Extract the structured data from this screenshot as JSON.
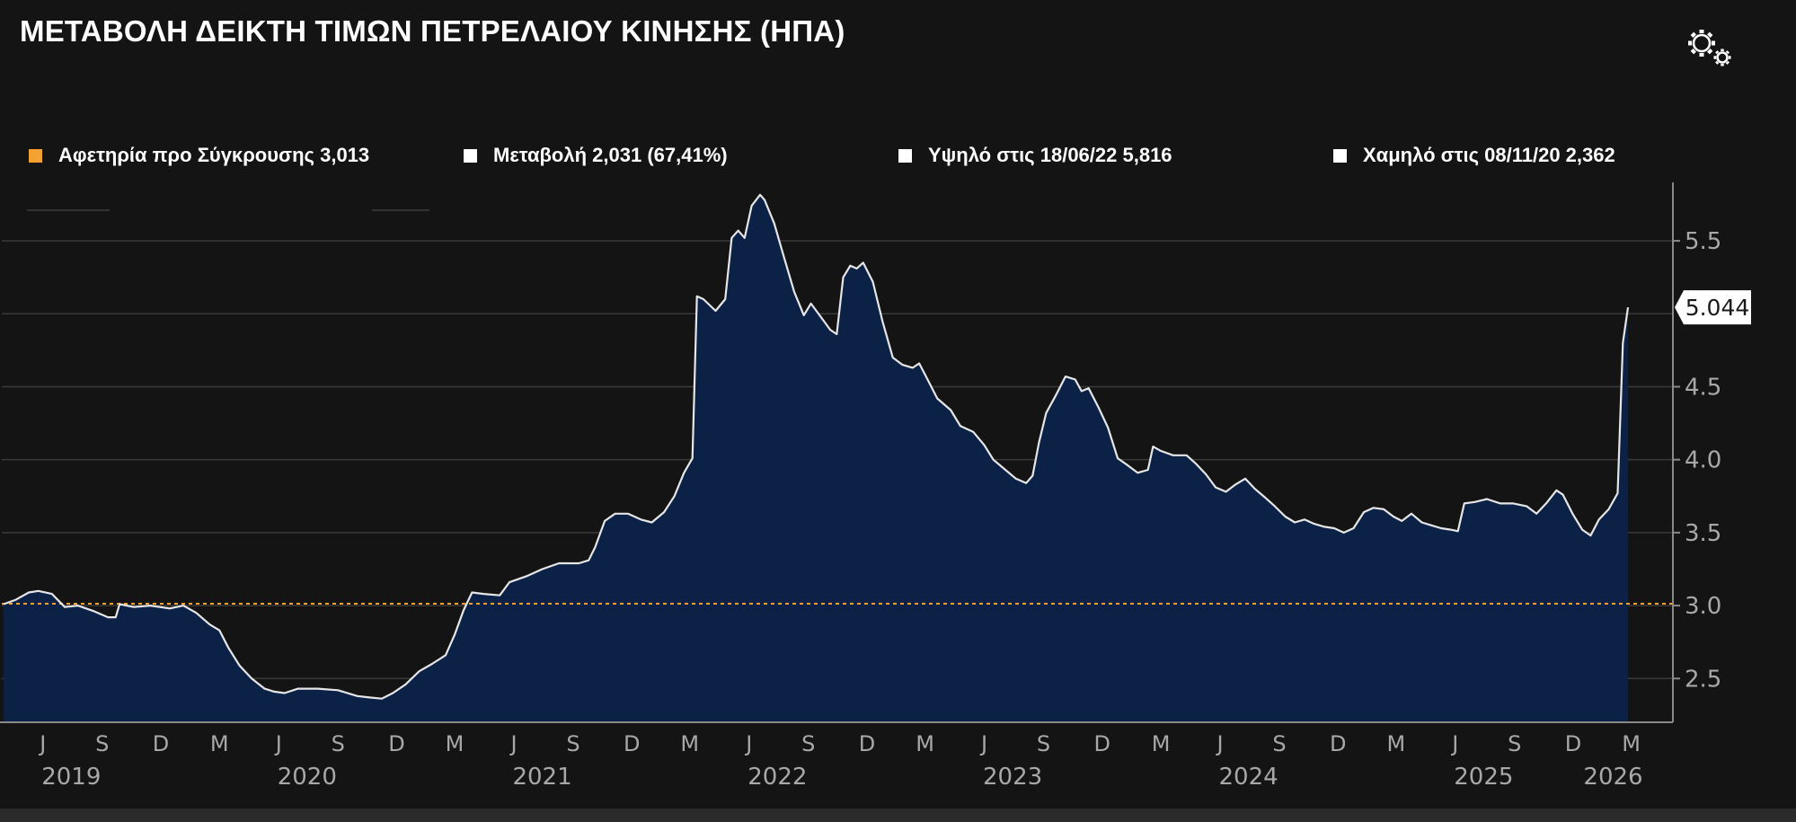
{
  "title": "ΜΕΤΑΒΟΛΗ ΔΕΙΚΤΗ ΤΙΜΩΝ ΠΕΤΡΕΛΑΙΟΥ ΚΙΝΗΣΗΣ (ΗΠΑ)",
  "settings_icon": "gears-icon",
  "legend": [
    {
      "label": "Αφετηρία προ Σύγκρουσης 3,013",
      "color": "#f5a12f"
    },
    {
      "label": "Μεταβολή 2,031 (67,41%)",
      "color": "#ffffff"
    },
    {
      "label": "Υψηλό στις 18/06/22  5,816",
      "color": "#ffffff"
    },
    {
      "label": "Χαμηλό  στις  08/11/20  2,362",
      "color": "#ffffff"
    }
  ],
  "last_value_label": "5.044",
  "colors": {
    "background": "#141414",
    "area_fill": "#0b2146",
    "line": "#e6e6e6",
    "baseline": "#f5a12f",
    "grid": "#3a3a3a",
    "axis_text": "#a8a8a8"
  },
  "chart_data": {
    "type": "area",
    "ylim": [
      2.2,
      5.95
    ],
    "yticks": [
      2.5,
      3.0,
      3.5,
      4.0,
      4.5,
      5.5
    ],
    "ytick_labels": [
      "2.5",
      "3.0",
      "3.5",
      "4.0",
      "4.5",
      "5.5"
    ],
    "baseline": 3.013,
    "grid": true,
    "x_month_labels": [
      {
        "label": "J",
        "date": "2019-06-01"
      },
      {
        "label": "S",
        "date": "2019-09-01"
      },
      {
        "label": "D",
        "date": "2019-12-01"
      },
      {
        "label": "M",
        "date": "2020-03-01"
      },
      {
        "label": "J",
        "date": "2020-06-01"
      },
      {
        "label": "S",
        "date": "2020-09-01"
      },
      {
        "label": "D",
        "date": "2020-12-01"
      },
      {
        "label": "M",
        "date": "2021-03-01"
      },
      {
        "label": "J",
        "date": "2021-06-01"
      },
      {
        "label": "S",
        "date": "2021-09-01"
      },
      {
        "label": "D",
        "date": "2021-12-01"
      },
      {
        "label": "M",
        "date": "2022-03-01"
      },
      {
        "label": "J",
        "date": "2022-06-01"
      },
      {
        "label": "S",
        "date": "2022-09-01"
      },
      {
        "label": "D",
        "date": "2022-12-01"
      },
      {
        "label": "M",
        "date": "2023-03-01"
      },
      {
        "label": "J",
        "date": "2023-06-01"
      },
      {
        "label": "S",
        "date": "2023-09-01"
      },
      {
        "label": "D",
        "date": "2023-12-01"
      },
      {
        "label": "M",
        "date": "2024-03-01"
      },
      {
        "label": "J",
        "date": "2024-06-01"
      },
      {
        "label": "S",
        "date": "2024-09-01"
      },
      {
        "label": "D",
        "date": "2024-12-01"
      },
      {
        "label": "M",
        "date": "2025-03-01"
      },
      {
        "label": "J",
        "date": "2025-06-01"
      },
      {
        "label": "S",
        "date": "2025-09-01"
      },
      {
        "label": "D",
        "date": "2025-12-01"
      },
      {
        "label": "M",
        "date": "2026-03-01"
      }
    ],
    "x_year_labels": [
      {
        "label": "2019",
        "date": "2019-07-15"
      },
      {
        "label": "2020",
        "date": "2020-07-15"
      },
      {
        "label": "2021",
        "date": "2021-07-15"
      },
      {
        "label": "2022",
        "date": "2022-07-15"
      },
      {
        "label": "2023",
        "date": "2023-07-15"
      },
      {
        "label": "2024",
        "date": "2024-07-15"
      },
      {
        "label": "2025",
        "date": "2025-07-15"
      },
      {
        "label": "2026",
        "date": "2026-02-01"
      }
    ],
    "series": [
      {
        "points": [
          [
            "2019-04-01",
            3.01
          ],
          [
            "2019-04-20",
            3.04
          ],
          [
            "2019-05-10",
            3.09
          ],
          [
            "2019-05-25",
            3.1
          ],
          [
            "2019-06-15",
            3.08
          ],
          [
            "2019-07-05",
            2.99
          ],
          [
            "2019-07-25",
            3.0
          ],
          [
            "2019-08-20",
            2.96
          ],
          [
            "2019-09-10",
            2.92
          ],
          [
            "2019-09-22",
            2.92
          ],
          [
            "2019-09-28",
            3.01
          ],
          [
            "2019-10-20",
            2.99
          ],
          [
            "2019-11-15",
            3.0
          ],
          [
            "2019-12-15",
            2.98
          ],
          [
            "2020-01-05",
            3.0
          ],
          [
            "2020-01-25",
            2.95
          ],
          [
            "2020-02-15",
            2.87
          ],
          [
            "2020-03-01",
            2.83
          ],
          [
            "2020-03-15",
            2.71
          ],
          [
            "2020-04-01",
            2.59
          ],
          [
            "2020-04-20",
            2.5
          ],
          [
            "2020-05-10",
            2.43
          ],
          [
            "2020-05-25",
            2.41
          ],
          [
            "2020-06-10",
            2.4
          ],
          [
            "2020-07-01",
            2.43
          ],
          [
            "2020-08-01",
            2.43
          ],
          [
            "2020-09-01",
            2.42
          ],
          [
            "2020-10-01",
            2.38
          ],
          [
            "2020-10-20",
            2.37
          ],
          [
            "2020-11-08",
            2.362
          ],
          [
            "2020-11-25",
            2.4
          ],
          [
            "2020-12-15",
            2.46
          ],
          [
            "2021-01-05",
            2.55
          ],
          [
            "2021-01-25",
            2.6
          ],
          [
            "2021-02-15",
            2.66
          ],
          [
            "2021-03-01",
            2.8
          ],
          [
            "2021-03-15",
            2.97
          ],
          [
            "2021-03-28",
            3.09
          ],
          [
            "2021-04-15",
            3.08
          ],
          [
            "2021-05-10",
            3.07
          ],
          [
            "2021-05-25",
            3.16
          ],
          [
            "2021-06-20",
            3.2
          ],
          [
            "2021-07-15",
            3.25
          ],
          [
            "2021-08-10",
            3.29
          ],
          [
            "2021-09-10",
            3.29
          ],
          [
            "2021-09-25",
            3.31
          ],
          [
            "2021-10-05",
            3.4
          ],
          [
            "2021-10-20",
            3.58
          ],
          [
            "2021-11-05",
            3.63
          ],
          [
            "2021-11-25",
            3.63
          ],
          [
            "2021-12-15",
            3.59
          ],
          [
            "2022-01-01",
            3.57
          ],
          [
            "2022-01-20",
            3.64
          ],
          [
            "2022-02-05",
            3.75
          ],
          [
            "2022-02-20",
            3.91
          ],
          [
            "2022-03-05",
            4.01
          ],
          [
            "2022-03-12",
            5.12
          ],
          [
            "2022-03-22",
            5.1
          ],
          [
            "2022-04-10",
            5.02
          ],
          [
            "2022-04-25",
            5.1
          ],
          [
            "2022-05-05",
            5.52
          ],
          [
            "2022-05-15",
            5.57
          ],
          [
            "2022-05-25",
            5.52
          ],
          [
            "2022-06-05",
            5.74
          ],
          [
            "2022-06-18",
            5.816
          ],
          [
            "2022-06-25",
            5.78
          ],
          [
            "2022-07-10",
            5.62
          ],
          [
            "2022-07-25",
            5.39
          ],
          [
            "2022-08-10",
            5.15
          ],
          [
            "2022-08-25",
            4.99
          ],
          [
            "2022-09-05",
            5.07
          ],
          [
            "2022-09-20",
            4.98
          ],
          [
            "2022-10-05",
            4.89
          ],
          [
            "2022-10-15",
            4.86
          ],
          [
            "2022-10-25",
            5.25
          ],
          [
            "2022-11-05",
            5.33
          ],
          [
            "2022-11-15",
            5.31
          ],
          [
            "2022-11-25",
            5.35
          ],
          [
            "2022-12-10",
            5.22
          ],
          [
            "2022-12-25",
            4.95
          ],
          [
            "2023-01-10",
            4.7
          ],
          [
            "2023-01-25",
            4.65
          ],
          [
            "2023-02-10",
            4.63
          ],
          [
            "2023-02-20",
            4.66
          ],
          [
            "2023-03-05",
            4.55
          ],
          [
            "2023-03-20",
            4.42
          ],
          [
            "2023-04-10",
            4.34
          ],
          [
            "2023-04-25",
            4.23
          ],
          [
            "2023-05-15",
            4.19
          ],
          [
            "2023-06-01",
            4.1
          ],
          [
            "2023-06-15",
            4.0
          ],
          [
            "2023-07-01",
            3.94
          ],
          [
            "2023-07-20",
            3.87
          ],
          [
            "2023-08-05",
            3.84
          ],
          [
            "2023-08-15",
            3.89
          ],
          [
            "2023-08-25",
            4.12
          ],
          [
            "2023-09-05",
            4.32
          ],
          [
            "2023-09-20",
            4.44
          ],
          [
            "2023-10-05",
            4.57
          ],
          [
            "2023-10-20",
            4.55
          ],
          [
            "2023-10-30",
            4.47
          ],
          [
            "2023-11-10",
            4.49
          ],
          [
            "2023-11-25",
            4.36
          ],
          [
            "2023-12-10",
            4.22
          ],
          [
            "2023-12-25",
            4.01
          ],
          [
            "2024-01-10",
            3.96
          ],
          [
            "2024-01-25",
            3.91
          ],
          [
            "2024-02-10",
            3.93
          ],
          [
            "2024-02-18",
            4.09
          ],
          [
            "2024-03-01",
            4.06
          ],
          [
            "2024-03-20",
            4.03
          ],
          [
            "2024-04-10",
            4.03
          ],
          [
            "2024-04-25",
            3.97
          ],
          [
            "2024-05-10",
            3.9
          ],
          [
            "2024-05-25",
            3.81
          ],
          [
            "2024-06-10",
            3.78
          ],
          [
            "2024-06-25",
            3.83
          ],
          [
            "2024-07-10",
            3.87
          ],
          [
            "2024-07-25",
            3.8
          ],
          [
            "2024-08-10",
            3.74
          ],
          [
            "2024-08-25",
            3.68
          ],
          [
            "2024-09-10",
            3.61
          ],
          [
            "2024-09-25",
            3.57
          ],
          [
            "2024-10-10",
            3.59
          ],
          [
            "2024-10-25",
            3.56
          ],
          [
            "2024-11-10",
            3.54
          ],
          [
            "2024-11-25",
            3.53
          ],
          [
            "2024-12-10",
            3.5
          ],
          [
            "2024-12-25",
            3.53
          ],
          [
            "2025-01-10",
            3.64
          ],
          [
            "2025-01-25",
            3.67
          ],
          [
            "2025-02-10",
            3.66
          ],
          [
            "2025-02-25",
            3.61
          ],
          [
            "2025-03-10",
            3.58
          ],
          [
            "2025-03-25",
            3.63
          ],
          [
            "2025-04-10",
            3.57
          ],
          [
            "2025-04-25",
            3.55
          ],
          [
            "2025-05-10",
            3.53
          ],
          [
            "2025-05-25",
            3.52
          ],
          [
            "2025-06-05",
            3.51
          ],
          [
            "2025-06-15",
            3.7
          ],
          [
            "2025-07-01",
            3.71
          ],
          [
            "2025-07-20",
            3.73
          ],
          [
            "2025-08-10",
            3.7
          ],
          [
            "2025-08-30",
            3.7
          ],
          [
            "2025-09-20",
            3.68
          ],
          [
            "2025-10-05",
            3.63
          ],
          [
            "2025-10-20",
            3.7
          ],
          [
            "2025-11-05",
            3.79
          ],
          [
            "2025-11-15",
            3.76
          ],
          [
            "2025-11-30",
            3.63
          ],
          [
            "2025-12-15",
            3.52
          ],
          [
            "2025-12-28",
            3.48
          ],
          [
            "2026-01-10",
            3.59
          ],
          [
            "2026-01-25",
            3.66
          ],
          [
            "2026-02-08",
            3.77
          ],
          [
            "2026-02-16",
            4.8
          ],
          [
            "2026-02-24",
            5.044
          ]
        ]
      }
    ]
  }
}
